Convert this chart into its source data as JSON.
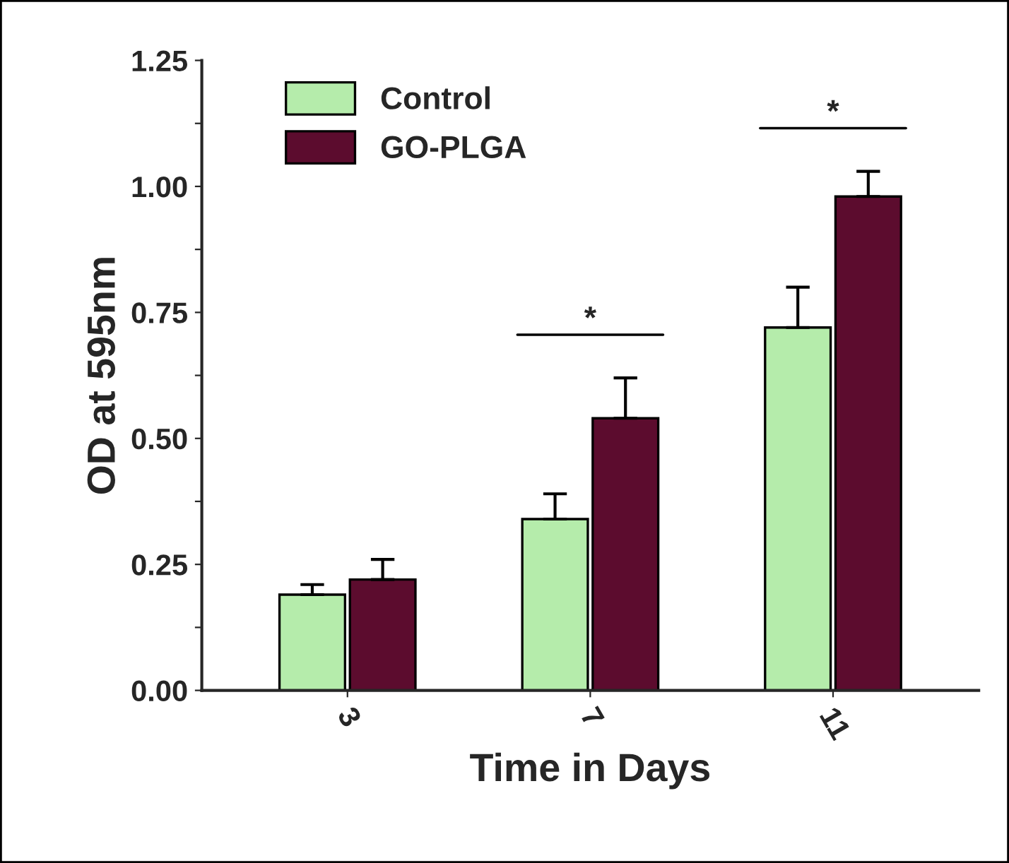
{
  "chart_data": {
    "type": "bar",
    "xlabel": "Time in Days",
    "ylabel": "OD at 595nm",
    "categories": [
      "3",
      "7",
      "11"
    ],
    "series": [
      {
        "name": "Control",
        "color": "#b5ecab",
        "values": [
          0.19,
          0.34,
          0.72
        ],
        "errors": [
          [
            0.19,
            0.21
          ],
          [
            0.34,
            0.39
          ],
          [
            0.72,
            0.8
          ]
        ]
      },
      {
        "name": "GO-PLGA",
        "color": "#5c0c2e",
        "values": [
          0.22,
          0.54,
          0.98
        ],
        "errors": [
          [
            0.22,
            0.26
          ],
          [
            0.54,
            0.62
          ],
          [
            0.98,
            1.03
          ]
        ]
      }
    ],
    "ylim": [
      0,
      1.25
    ],
    "yticks": [
      {
        "value": 0,
        "label": "0.00"
      },
      {
        "value": 0.125,
        "label": null
      },
      0.25,
      {
        "value": 0.375,
        "label": null
      },
      {
        "value": 0.5,
        "label": "0.50"
      },
      {
        "value": 0.625,
        "label": null
      },
      0.75,
      {
        "value": 0.875,
        "label": null
      },
      {
        "value": 1.0,
        "label": "1.00"
      },
      {
        "value": 1.125,
        "label": null
      },
      1.25
    ],
    "annotations": [
      "*",
      "*"
    ],
    "legend": "top left",
    "grid": false
  }
}
